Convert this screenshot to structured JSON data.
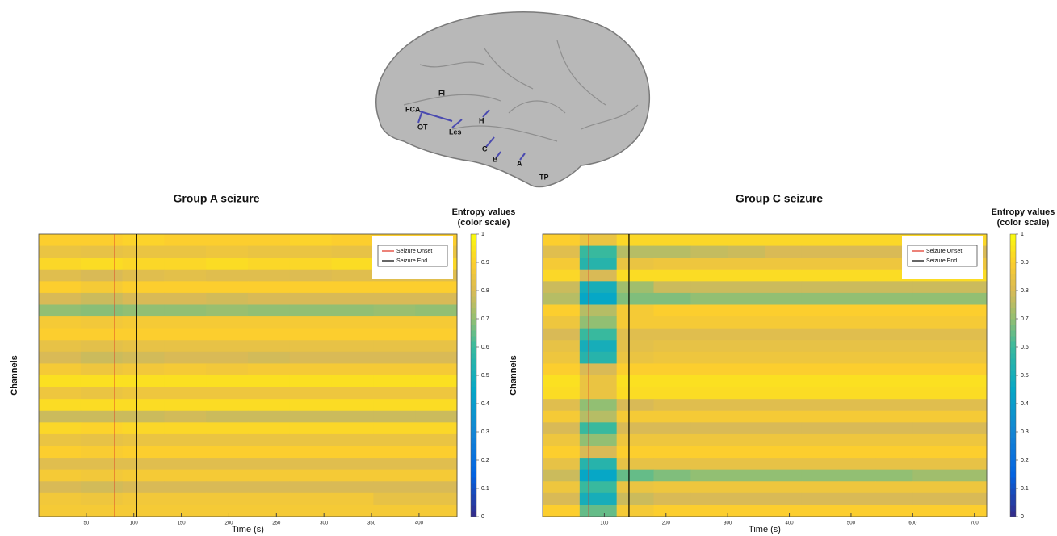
{
  "figure": {
    "brain_labels": [
      "FI",
      "FCA",
      "OT",
      "Les",
      "H",
      "C",
      "B",
      "A",
      "TP"
    ]
  },
  "chart_data": [
    {
      "type": "heatmap",
      "title": "Group A seizure",
      "xlabel": "Time (s)",
      "ylabel": "Channels",
      "colormap": "parula",
      "xlim": [
        0,
        440
      ],
      "xticks": [
        50,
        100,
        150,
        200,
        250,
        300,
        350,
        400
      ],
      "x": [
        22,
        66,
        110,
        154,
        198,
        242,
        286,
        330,
        374,
        418
      ],
      "values": [
        [
          0.9,
          0.9,
          0.91,
          0.9,
          0.9,
          0.9,
          0.91,
          0.9,
          0.9,
          0.9
        ],
        [
          0.85,
          0.84,
          0.85,
          0.85,
          0.86,
          0.85,
          0.85,
          0.84,
          0.85,
          0.85
        ],
        [
          0.92,
          0.93,
          0.92,
          0.92,
          0.93,
          0.92,
          0.92,
          0.93,
          0.92,
          0.92
        ],
        [
          0.82,
          0.8,
          0.82,
          0.83,
          0.82,
          0.82,
          0.81,
          0.82,
          0.82,
          0.82
        ],
        [
          0.9,
          0.88,
          0.9,
          0.9,
          0.9,
          0.9,
          0.9,
          0.9,
          0.9,
          0.9
        ],
        [
          0.8,
          0.78,
          0.8,
          0.8,
          0.79,
          0.8,
          0.8,
          0.8,
          0.8,
          0.8
        ],
        [
          0.7,
          0.69,
          0.7,
          0.7,
          0.71,
          0.7,
          0.7,
          0.7,
          0.71,
          0.7
        ],
        [
          0.88,
          0.87,
          0.88,
          0.88,
          0.88,
          0.88,
          0.88,
          0.88,
          0.88,
          0.88
        ],
        [
          0.9,
          0.9,
          0.9,
          0.9,
          0.9,
          0.9,
          0.9,
          0.9,
          0.9,
          0.9
        ],
        [
          0.84,
          0.83,
          0.84,
          0.84,
          0.84,
          0.84,
          0.84,
          0.84,
          0.84,
          0.84
        ],
        [
          0.8,
          0.78,
          0.79,
          0.8,
          0.8,
          0.79,
          0.8,
          0.8,
          0.8,
          0.8
        ],
        [
          0.88,
          0.86,
          0.87,
          0.88,
          0.87,
          0.88,
          0.88,
          0.88,
          0.88,
          0.88
        ],
        [
          0.94,
          0.94,
          0.94,
          0.94,
          0.94,
          0.94,
          0.94,
          0.94,
          0.94,
          0.94
        ],
        [
          0.86,
          0.85,
          0.86,
          0.86,
          0.86,
          0.86,
          0.86,
          0.86,
          0.86,
          0.86
        ],
        [
          0.93,
          0.93,
          0.93,
          0.93,
          0.93,
          0.93,
          0.93,
          0.93,
          0.93,
          0.93
        ],
        [
          0.78,
          0.78,
          0.78,
          0.79,
          0.78,
          0.78,
          0.78,
          0.78,
          0.78,
          0.78
        ],
        [
          0.92,
          0.91,
          0.92,
          0.92,
          0.92,
          0.92,
          0.92,
          0.92,
          0.92,
          0.92
        ],
        [
          0.85,
          0.84,
          0.85,
          0.85,
          0.85,
          0.85,
          0.85,
          0.85,
          0.85,
          0.85
        ],
        [
          0.9,
          0.89,
          0.9,
          0.9,
          0.9,
          0.9,
          0.9,
          0.9,
          0.9,
          0.9
        ],
        [
          0.82,
          0.82,
          0.82,
          0.82,
          0.82,
          0.82,
          0.82,
          0.82,
          0.82,
          0.82
        ],
        [
          0.88,
          0.87,
          0.88,
          0.88,
          0.88,
          0.88,
          0.88,
          0.88,
          0.88,
          0.88
        ],
        [
          0.8,
          0.79,
          0.8,
          0.8,
          0.8,
          0.8,
          0.8,
          0.8,
          0.8,
          0.8
        ],
        [
          0.87,
          0.86,
          0.87,
          0.87,
          0.87,
          0.87,
          0.87,
          0.87,
          0.84,
          0.84
        ],
        [
          0.88,
          0.88,
          0.88,
          0.88,
          0.88,
          0.88,
          0.88,
          0.88,
          0.88,
          0.88
        ]
      ],
      "markers": [
        {
          "name": "Seizure Onset",
          "color": "#e03020",
          "x": 80
        },
        {
          "name": "Seizure End",
          "color": "#000000",
          "x": 103
        }
      ],
      "colorbar": {
        "label": [
          "Entropy values",
          "(color scale)"
        ],
        "lim": [
          0,
          1
        ],
        "ticks": [
          0,
          0.1,
          0.2,
          0.3,
          0.4,
          0.5,
          0.6,
          0.7,
          0.8,
          0.9,
          1
        ]
      }
    },
    {
      "type": "heatmap",
      "title": "Group C seizure",
      "xlabel": "Time (s)",
      "ylabel": "Channels",
      "colormap": "parula",
      "xlim": [
        0,
        720
      ],
      "xticks": [
        100,
        200,
        300,
        400,
        500,
        600,
        700
      ],
      "x": [
        30,
        90,
        150,
        210,
        270,
        330,
        390,
        450,
        510,
        570,
        630,
        690
      ],
      "values": [
        [
          0.9,
          0.85,
          0.92,
          0.92,
          0.92,
          0.92,
          0.92,
          0.92,
          0.92,
          0.92,
          0.92,
          0.92
        ],
        [
          0.82,
          0.6,
          0.75,
          0.75,
          0.77,
          0.78,
          0.8,
          0.8,
          0.8,
          0.8,
          0.8,
          0.8
        ],
        [
          0.88,
          0.55,
          0.85,
          0.86,
          0.86,
          0.86,
          0.86,
          0.86,
          0.86,
          0.86,
          0.86,
          0.86
        ],
        [
          0.92,
          0.8,
          0.93,
          0.93,
          0.93,
          0.93,
          0.93,
          0.93,
          0.93,
          0.93,
          0.93,
          0.93
        ],
        [
          0.78,
          0.5,
          0.72,
          0.78,
          0.78,
          0.78,
          0.78,
          0.78,
          0.78,
          0.78,
          0.78,
          0.78
        ],
        [
          0.75,
          0.45,
          0.68,
          0.68,
          0.7,
          0.7,
          0.7,
          0.7,
          0.7,
          0.7,
          0.7,
          0.7
        ],
        [
          0.9,
          0.75,
          0.88,
          0.9,
          0.9,
          0.9,
          0.9,
          0.9,
          0.9,
          0.9,
          0.9,
          0.9
        ],
        [
          0.86,
          0.7,
          0.88,
          0.88,
          0.88,
          0.88,
          0.88,
          0.88,
          0.88,
          0.88,
          0.88,
          0.88
        ],
        [
          0.8,
          0.6,
          0.82,
          0.82,
          0.82,
          0.82,
          0.82,
          0.82,
          0.82,
          0.82,
          0.82,
          0.82
        ],
        [
          0.84,
          0.5,
          0.83,
          0.84,
          0.84,
          0.84,
          0.84,
          0.84,
          0.84,
          0.84,
          0.84,
          0.84
        ],
        [
          0.86,
          0.55,
          0.85,
          0.86,
          0.86,
          0.86,
          0.86,
          0.86,
          0.86,
          0.86,
          0.86,
          0.86
        ],
        [
          0.9,
          0.8,
          0.9,
          0.9,
          0.9,
          0.9,
          0.9,
          0.9,
          0.9,
          0.9,
          0.9,
          0.9
        ],
        [
          0.94,
          0.85,
          0.94,
          0.94,
          0.94,
          0.94,
          0.94,
          0.94,
          0.94,
          0.94,
          0.94,
          0.94
        ],
        [
          0.93,
          0.85,
          0.93,
          0.93,
          0.93,
          0.93,
          0.93,
          0.93,
          0.93,
          0.93,
          0.93,
          0.93
        ],
        [
          0.82,
          0.7,
          0.8,
          0.82,
          0.82,
          0.82,
          0.82,
          0.82,
          0.82,
          0.82,
          0.82,
          0.82
        ],
        [
          0.88,
          0.75,
          0.88,
          0.88,
          0.88,
          0.88,
          0.88,
          0.88,
          0.88,
          0.88,
          0.88,
          0.88
        ],
        [
          0.8,
          0.6,
          0.8,
          0.8,
          0.8,
          0.8,
          0.8,
          0.8,
          0.8,
          0.8,
          0.8,
          0.8
        ],
        [
          0.86,
          0.7,
          0.86,
          0.86,
          0.86,
          0.86,
          0.86,
          0.86,
          0.86,
          0.86,
          0.86,
          0.86
        ],
        [
          0.9,
          0.8,
          0.9,
          0.9,
          0.9,
          0.9,
          0.9,
          0.9,
          0.9,
          0.9,
          0.9,
          0.9
        ],
        [
          0.84,
          0.55,
          0.84,
          0.84,
          0.84,
          0.84,
          0.84,
          0.84,
          0.84,
          0.84,
          0.84,
          0.84
        ],
        [
          0.78,
          0.45,
          0.65,
          0.68,
          0.7,
          0.7,
          0.7,
          0.7,
          0.7,
          0.7,
          0.72,
          0.72
        ],
        [
          0.86,
          0.6,
          0.85,
          0.86,
          0.86,
          0.86,
          0.86,
          0.86,
          0.86,
          0.86,
          0.86,
          0.86
        ],
        [
          0.8,
          0.5,
          0.78,
          0.8,
          0.8,
          0.8,
          0.8,
          0.8,
          0.8,
          0.8,
          0.8,
          0.8
        ],
        [
          0.9,
          0.65,
          0.88,
          0.9,
          0.9,
          0.9,
          0.9,
          0.9,
          0.9,
          0.9,
          0.9,
          0.9
        ]
      ],
      "markers": [
        {
          "name": "Seizure Onset",
          "color": "#e03020",
          "x": 75
        },
        {
          "name": "Seizure End",
          "color": "#000000",
          "x": 140
        }
      ],
      "colorbar": {
        "label": [
          "Entropy values",
          "(color scale)"
        ],
        "lim": [
          0,
          1
        ],
        "ticks": [
          0,
          0.1,
          0.2,
          0.3,
          0.4,
          0.5,
          0.6,
          0.7,
          0.8,
          0.9,
          1
        ]
      }
    }
  ]
}
